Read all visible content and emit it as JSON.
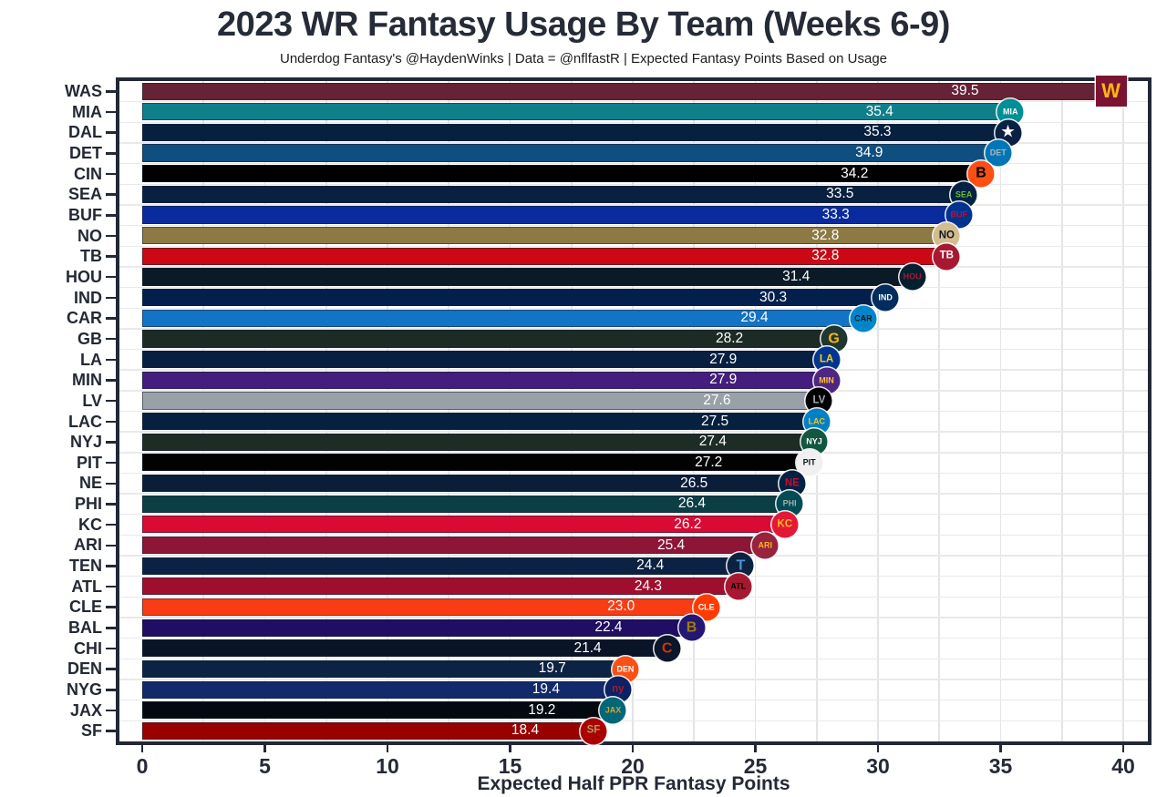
{
  "title": "2023 WR Fantasy Usage By Team (Weeks 6-9)",
  "subtitle": "Underdog Fantasy's @HaydenWinks | Data = @nflfastR | Expected Fantasy Points Based on Usage",
  "chart_data": {
    "type": "bar",
    "orientation": "horizontal",
    "title": "2023 WR Fantasy Usage By Team (Weeks 6-9)",
    "subtitle": "Underdog Fantasy's @HaydenWinks | Data = @nflfastR | Expected Fantasy Points Based on Usage",
    "xlabel": "Expected Half PPR Fantasy Points",
    "ylabel": "",
    "xlim": [
      0,
      40
    ],
    "x_ticks": [
      0,
      5,
      10,
      15,
      20,
      25,
      30,
      35,
      40
    ],
    "grid": "on",
    "minor_grid_step": 2.5,
    "panel_border_color": "#232838",
    "gridline_color": "#e4e4e8",
    "value_label_color": "#ffffff",
    "categories": [
      "WAS",
      "MIA",
      "DAL",
      "DET",
      "CIN",
      "SEA",
      "BUF",
      "NO",
      "TB",
      "HOU",
      "IND",
      "CAR",
      "GB",
      "LA",
      "MIN",
      "LV",
      "LAC",
      "NYJ",
      "PIT",
      "NE",
      "PHI",
      "KC",
      "ARI",
      "TEN",
      "ATL",
      "CLE",
      "BAL",
      "CHI",
      "DEN",
      "NYG",
      "JAX",
      "SF"
    ],
    "values": [
      39.5,
      35.4,
      35.3,
      34.9,
      34.2,
      33.5,
      33.3,
      32.8,
      32.8,
      31.4,
      30.3,
      29.4,
      28.2,
      27.9,
      27.9,
      27.6,
      27.5,
      27.4,
      27.2,
      26.5,
      26.4,
      26.2,
      25.4,
      24.4,
      24.3,
      23.0,
      22.4,
      21.4,
      19.7,
      19.4,
      19.2,
      18.4
    ],
    "teams": [
      {
        "abbr": "WAS",
        "value": 39.5,
        "label": "39.5",
        "bar": "#662335",
        "logo_bg": "#7B1432",
        "logo_fg": "#FFB612",
        "logo_text": "W",
        "logo_shape": "square"
      },
      {
        "abbr": "MIA",
        "value": 35.4,
        "label": "35.4",
        "bar": "#0f7f8a",
        "logo_bg": "#008E97",
        "logo_fg": "#ffffff",
        "logo_text": "MIA",
        "logo_shape": "circle"
      },
      {
        "abbr": "DAL",
        "value": 35.3,
        "label": "35.3",
        "bar": "#06203f",
        "logo_bg": "#0a2144",
        "logo_fg": "#ffffff",
        "logo_text": "★",
        "logo_shape": "circle"
      },
      {
        "abbr": "DET",
        "value": 34.9,
        "label": "34.9",
        "bar": "#0f4f80",
        "logo_bg": "#0076B6",
        "logo_fg": "#b0b7bc",
        "logo_text": "DET",
        "logo_shape": "circle"
      },
      {
        "abbr": "CIN",
        "value": 34.2,
        "label": "34.2",
        "bar": "#000000",
        "logo_bg": "#FB4F14",
        "logo_fg": "#000000",
        "logo_text": "B",
        "logo_shape": "circle"
      },
      {
        "abbr": "SEA",
        "value": 33.5,
        "label": "33.5",
        "bar": "#0a2040",
        "logo_bg": "#002244",
        "logo_fg": "#69BE28",
        "logo_text": "SEA",
        "logo_shape": "circle"
      },
      {
        "abbr": "BUF",
        "value": 33.3,
        "label": "33.3",
        "bar": "#0a2b9d",
        "logo_bg": "#00338D",
        "logo_fg": "#C60C30",
        "logo_text": "BUF",
        "logo_shape": "circle"
      },
      {
        "abbr": "NO",
        "value": 32.8,
        "label": "32.8",
        "bar": "#8d7944",
        "logo_bg": "#D3BC8D",
        "logo_fg": "#101820",
        "logo_text": "NO",
        "logo_shape": "circle"
      },
      {
        "abbr": "TB",
        "value": 32.8,
        "label": "32.8",
        "bar": "#cb0813",
        "logo_bg": "#A71930",
        "logo_fg": "#ffffff",
        "logo_text": "TB",
        "logo_shape": "circle"
      },
      {
        "abbr": "HOU",
        "value": 31.4,
        "label": "31.4",
        "bar": "#0a1a26",
        "logo_bg": "#03202F",
        "logo_fg": "#A71930",
        "logo_text": "HOU",
        "logo_shape": "circle"
      },
      {
        "abbr": "IND",
        "value": 30.3,
        "label": "30.3",
        "bar": "#03204d",
        "logo_bg": "#002C5F",
        "logo_fg": "#ffffff",
        "logo_text": "IND",
        "logo_shape": "circle"
      },
      {
        "abbr": "CAR",
        "value": 29.4,
        "label": "29.4",
        "bar": "#1373c4",
        "logo_bg": "#0085CA",
        "logo_fg": "#101820",
        "logo_text": "CAR",
        "logo_shape": "circle"
      },
      {
        "abbr": "GB",
        "value": 28.2,
        "label": "28.2",
        "bar": "#1d2b25",
        "logo_bg": "#203731",
        "logo_fg": "#FFB612",
        "logo_text": "G",
        "logo_shape": "circle"
      },
      {
        "abbr": "LA",
        "value": 27.9,
        "label": "27.9",
        "bar": "#071f40",
        "logo_bg": "#003594",
        "logo_fg": "#FFD100",
        "logo_text": "LA",
        "logo_shape": "circle"
      },
      {
        "abbr": "MIN",
        "value": 27.9,
        "label": "27.9",
        "bar": "#441d7e",
        "logo_bg": "#4F2683",
        "logo_fg": "#FFC62F",
        "logo_text": "MIN",
        "logo_shape": "circle"
      },
      {
        "abbr": "LV",
        "value": 27.6,
        "label": "27.6",
        "bar": "#98a1a7",
        "logo_bg": "#000000",
        "logo_fg": "#A5ACAF",
        "logo_text": "LV",
        "logo_shape": "circle"
      },
      {
        "abbr": "LAC",
        "value": 27.5,
        "label": "27.5",
        "bar": "#06203f",
        "logo_bg": "#0080C6",
        "logo_fg": "#FFC20E",
        "logo_text": "LAC",
        "logo_shape": "circle"
      },
      {
        "abbr": "NYJ",
        "value": 27.4,
        "label": "27.4",
        "bar": "#1d2c25",
        "logo_bg": "#125740",
        "logo_fg": "#ffffff",
        "logo_text": "NYJ",
        "logo_shape": "circle"
      },
      {
        "abbr": "PIT",
        "value": 27.2,
        "label": "27.2",
        "bar": "#020202",
        "logo_bg": "#f0f0f0",
        "logo_fg": "#101820",
        "logo_text": "PIT",
        "logo_shape": "circle"
      },
      {
        "abbr": "NE",
        "value": 26.5,
        "label": "26.5",
        "bar": "#0a1d39",
        "logo_bg": "#002244",
        "logo_fg": "#C60C30",
        "logo_text": "NE",
        "logo_shape": "circle"
      },
      {
        "abbr": "PHI",
        "value": 26.4,
        "label": "26.4",
        "bar": "#0c3e45",
        "logo_bg": "#004C54",
        "logo_fg": "#A5ACAF",
        "logo_text": "PHI",
        "logo_shape": "circle"
      },
      {
        "abbr": "KC",
        "value": 26.2,
        "label": "26.2",
        "bar": "#d90a33",
        "logo_bg": "#E31837",
        "logo_fg": "#FFB81C",
        "logo_text": "KC",
        "logo_shape": "circle"
      },
      {
        "abbr": "ARI",
        "value": 25.4,
        "label": "25.4",
        "bar": "#8d1536",
        "logo_bg": "#97233F",
        "logo_fg": "#FFB612",
        "logo_text": "ARI",
        "logo_shape": "circle"
      },
      {
        "abbr": "TEN",
        "value": 24.4,
        "label": "24.4",
        "bar": "#0b2244",
        "logo_bg": "#0C2340",
        "logo_fg": "#4B92DB",
        "logo_text": "T",
        "logo_shape": "circle"
      },
      {
        "abbr": "ATL",
        "value": 24.3,
        "label": "24.3",
        "bar": "#a00e2e",
        "logo_bg": "#A71930",
        "logo_fg": "#000000",
        "logo_text": "ATL",
        "logo_shape": "circle"
      },
      {
        "abbr": "CLE",
        "value": 23.0,
        "label": "23.0",
        "bar": "#f93c14",
        "logo_bg": "#FF3C00",
        "logo_fg": "#ffffff",
        "logo_text": "CLE",
        "logo_shape": "circle"
      },
      {
        "abbr": "BAL",
        "value": 22.4,
        "label": "22.4",
        "bar": "#1f0e63",
        "logo_bg": "#241773",
        "logo_fg": "#9E7C0C",
        "logo_text": "B",
        "logo_shape": "circle"
      },
      {
        "abbr": "CHI",
        "value": 21.4,
        "label": "21.4",
        "bar": "#0a1428",
        "logo_bg": "#0B162A",
        "logo_fg": "#C83803",
        "logo_text": "C",
        "logo_shape": "circle"
      },
      {
        "abbr": "DEN",
        "value": 19.7,
        "label": "19.7",
        "bar": "#0d2343",
        "logo_bg": "#FB4F14",
        "logo_fg": "#ffffff",
        "logo_text": "DEN",
        "logo_shape": "circle"
      },
      {
        "abbr": "NYG",
        "value": 19.4,
        "label": "19.4",
        "bar": "#12296b",
        "logo_bg": "#0B2265",
        "logo_fg": "#A71930",
        "logo_text": "ny",
        "logo_shape": "circle"
      },
      {
        "abbr": "JAX",
        "value": 19.2,
        "label": "19.2",
        "bar": "#020a10",
        "logo_bg": "#006778",
        "logo_fg": "#D7A22A",
        "logo_text": "JAX",
        "logo_shape": "circle"
      },
      {
        "abbr": "SF",
        "value": 18.4,
        "label": "18.4",
        "bar": "#990000",
        "logo_bg": "#AA0000",
        "logo_fg": "#B3995D",
        "logo_text": "SF",
        "logo_shape": "circle"
      }
    ]
  }
}
